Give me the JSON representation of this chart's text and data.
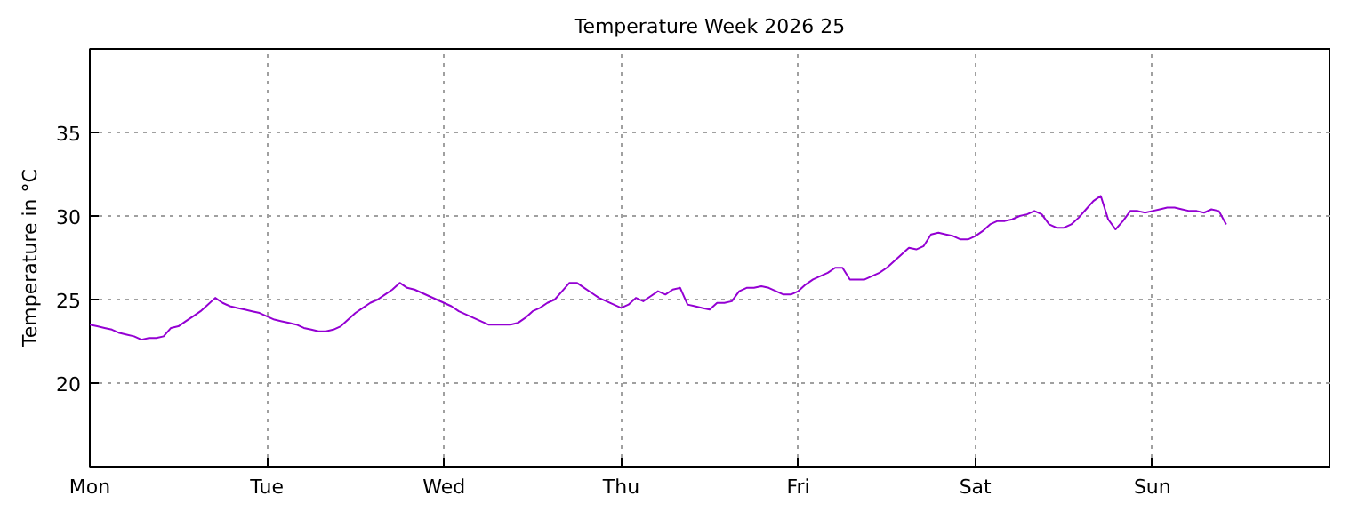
{
  "chart_data": {
    "type": "line",
    "title": "Temperature Week 2026 25",
    "ylabel": "Temperature in °C",
    "categories": [
      "Mon",
      null,
      null,
      null,
      null,
      null,
      null,
      null,
      null,
      null,
      null,
      null,
      null,
      null,
      null,
      null,
      null,
      null,
      null,
      null,
      null,
      null,
      null,
      null,
      "Tue",
      null,
      null,
      null,
      null,
      null,
      null,
      null,
      null,
      null,
      null,
      null,
      null,
      null,
      null,
      null,
      null,
      null,
      null,
      null,
      null,
      null,
      null,
      null,
      "Wed",
      null,
      null,
      null,
      null,
      null,
      null,
      null,
      null,
      null,
      null,
      null,
      null,
      null,
      null,
      null,
      null,
      null,
      null,
      null,
      null,
      null,
      null,
      null,
      "Thu",
      null,
      null,
      null,
      null,
      null,
      null,
      null,
      null,
      null,
      null,
      null,
      null,
      null,
      null,
      null,
      null,
      null,
      null,
      null,
      null,
      null,
      null,
      null,
      "Fri",
      null,
      null,
      null,
      null,
      null,
      null,
      null,
      null,
      null,
      null,
      null,
      null,
      null,
      null,
      null,
      null,
      null,
      null,
      null,
      null,
      null,
      null,
      null,
      "Sat",
      null,
      null,
      null,
      null,
      null,
      null,
      null,
      null,
      null,
      null,
      null,
      null,
      null,
      null,
      null,
      null,
      null,
      null,
      null,
      null,
      null,
      null,
      null,
      "Sun",
      null,
      null,
      null,
      null,
      null,
      null,
      null,
      null,
      null,
      null,
      null,
      null,
      null,
      null,
      null,
      null,
      null,
      null,
      null,
      null,
      null,
      null,
      null,
      null
    ],
    "ylim": [
      15,
      40
    ],
    "yticks": [
      20,
      25,
      30,
      35
    ],
    "grid": true,
    "marker": "none",
    "line_style": "solid",
    "series": [
      {
        "color": "#9400d3",
        "values": [
          23.5,
          23.4,
          23.3,
          23.2,
          23.0,
          22.9,
          22.8,
          22.6,
          22.7,
          22.7,
          22.8,
          23.3,
          23.4,
          23.7,
          24.0,
          24.3,
          24.7,
          25.1,
          24.8,
          24.6,
          24.5,
          24.4,
          24.3,
          24.2,
          24.0,
          23.8,
          23.7,
          23.6,
          23.5,
          23.3,
          23.2,
          23.1,
          23.1,
          23.2,
          23.4,
          23.8,
          24.2,
          24.5,
          24.8,
          25.0,
          25.3,
          25.6,
          26.0,
          25.7,
          25.6,
          25.4,
          25.2,
          25.0,
          24.8,
          24.6,
          24.3,
          24.1,
          23.9,
          23.7,
          23.5,
          23.5,
          23.5,
          23.5,
          23.6,
          23.9,
          24.3,
          24.5,
          24.8,
          25.0,
          25.5,
          26.0,
          26.0,
          25.7,
          25.4,
          25.1,
          24.9,
          24.7,
          24.5,
          24.7,
          25.1,
          24.9,
          25.2,
          25.5,
          25.3,
          25.6,
          25.7,
          24.7,
          24.6,
          24.5,
          24.4,
          24.8,
          24.8,
          24.9,
          25.5,
          25.7,
          25.7,
          25.8,
          25.7,
          25.5,
          25.3,
          25.3,
          25.5,
          25.9,
          26.2,
          26.4,
          26.6,
          26.9,
          26.9,
          26.2,
          26.2,
          26.2,
          26.4,
          26.6,
          26.9,
          27.3,
          27.7,
          28.1,
          28.0,
          28.2,
          28.9,
          29.0,
          28.9,
          28.8,
          28.6,
          28.6,
          28.8,
          29.1,
          29.5,
          29.7,
          29.7,
          29.8,
          30.0,
          30.1,
          30.3,
          30.1,
          29.5,
          29.3,
          29.3,
          29.5,
          29.9,
          30.4,
          30.9,
          31.2,
          29.8,
          29.2,
          29.7,
          30.3,
          30.3,
          30.2,
          30.3,
          30.4,
          30.5,
          30.5,
          30.4,
          30.3,
          30.3,
          30.2,
          30.4,
          30.3,
          29.5,
          null,
          null,
          null,
          null,
          null,
          null,
          null,
          null,
          null,
          null,
          null,
          null,
          null,
          null
        ]
      }
    ]
  }
}
